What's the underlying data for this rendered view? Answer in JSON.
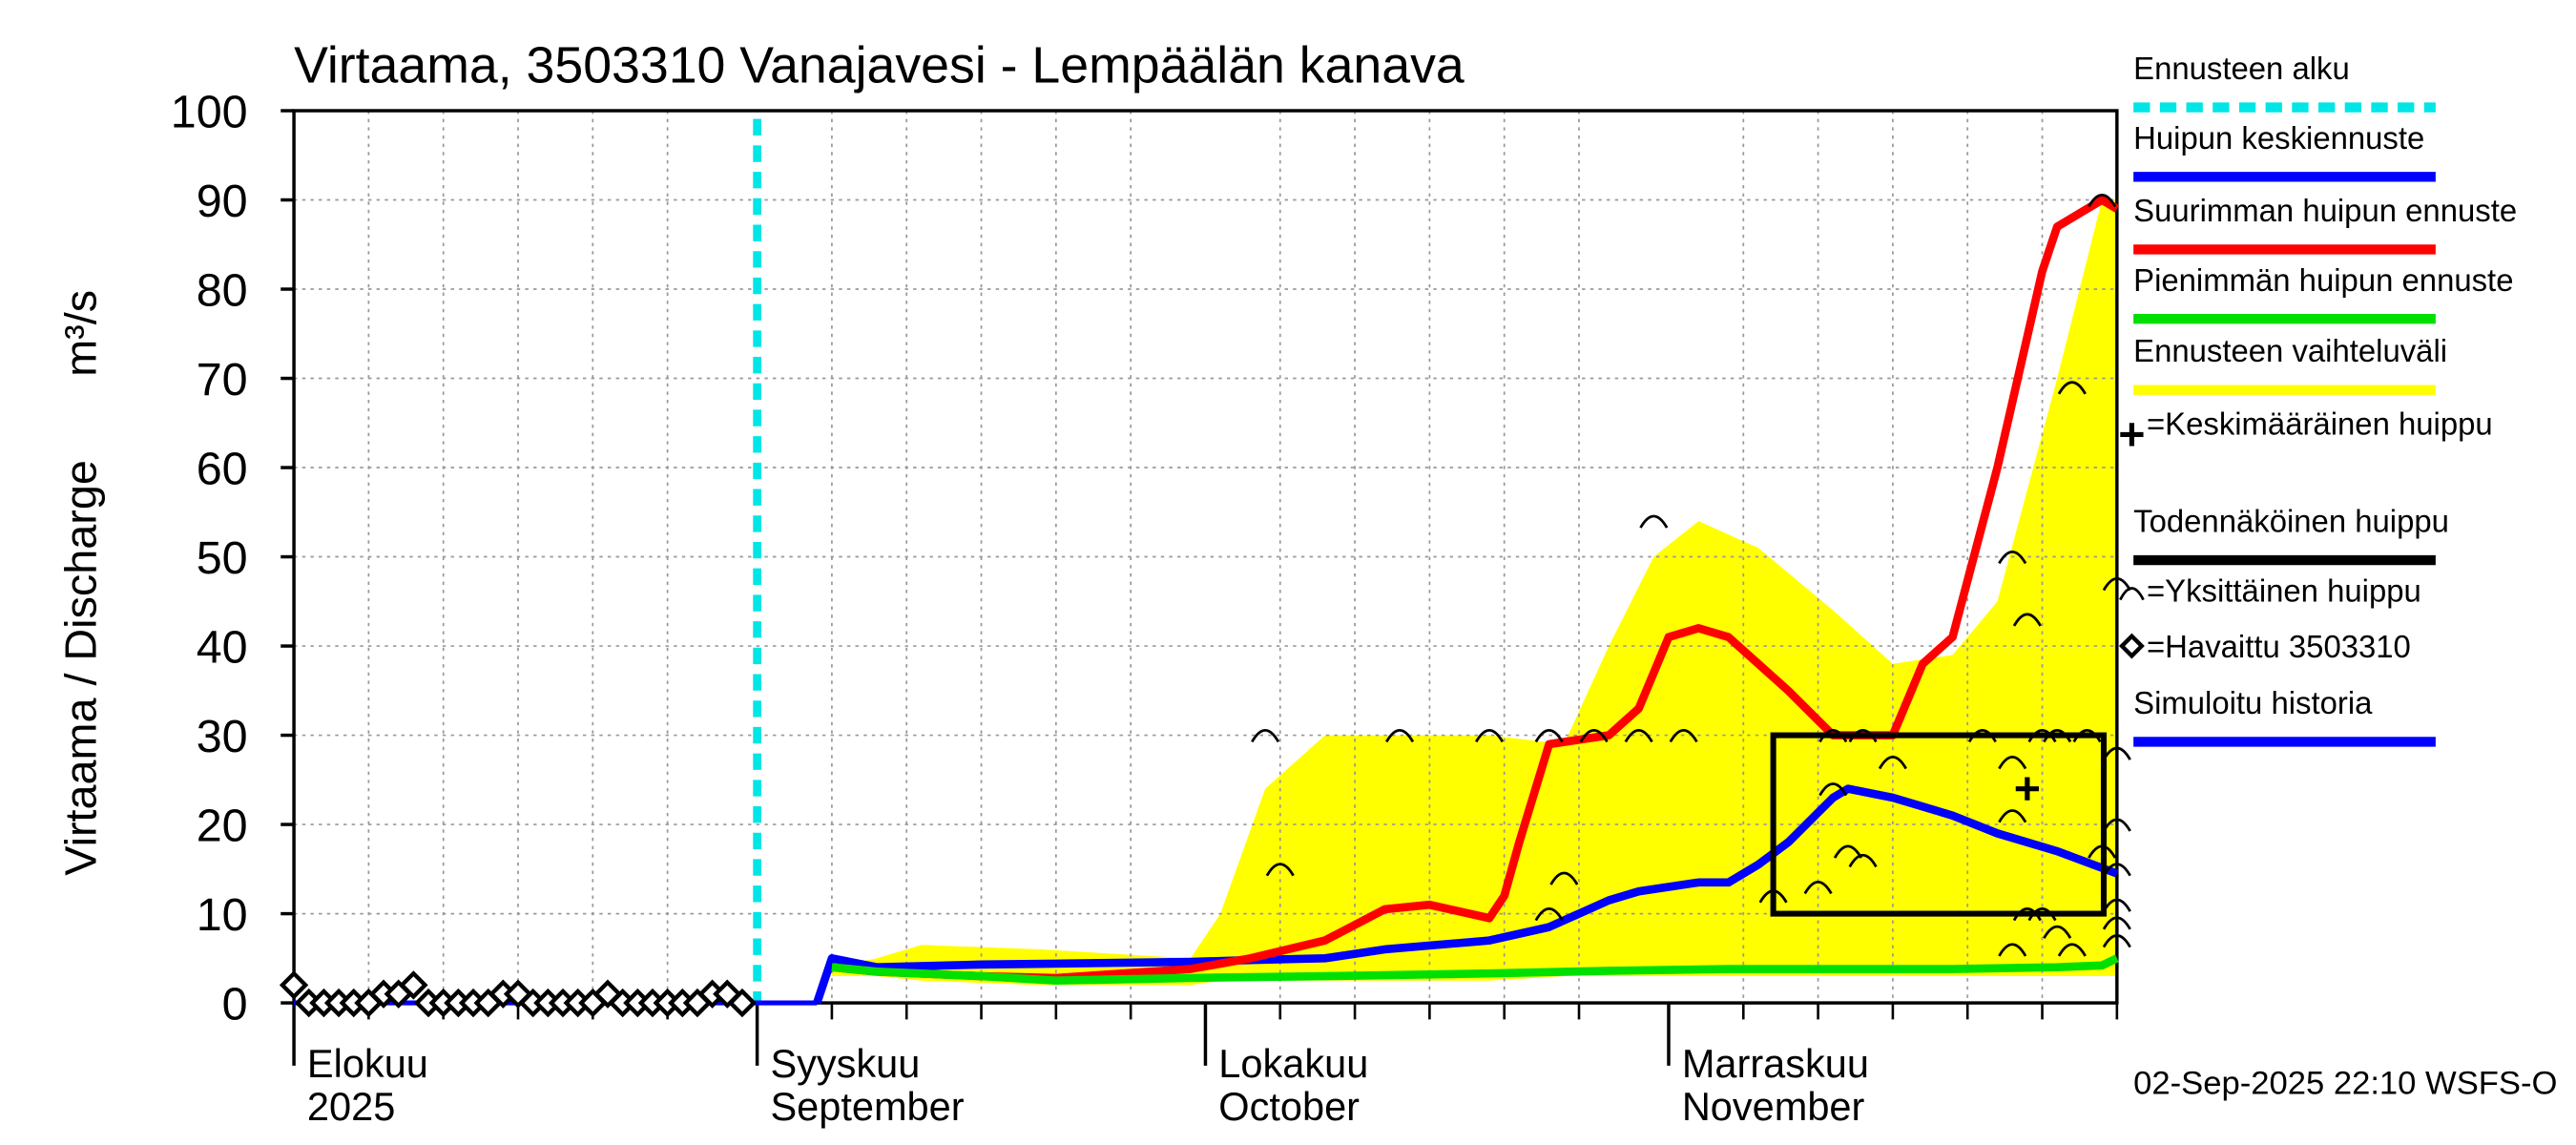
{
  "chart_data": {
    "type": "line",
    "title": "Virtaama, 3503310 Vanajavesi - Lempäälän kanava",
    "y_label": "Virtaama / Discharge",
    "y_unit": "m³/s",
    "timestamp": "02-Sep-2025 22:10 WSFS-O",
    "xlim": [
      "2025-08-01",
      "2025-12-01"
    ],
    "xticks": [
      {
        "value": "2025-08-01",
        "label": [
          "Elokuu",
          "2025"
        ]
      },
      {
        "value": "2025-09-01",
        "label": [
          "Syyskuu",
          "September"
        ]
      },
      {
        "value": "2025-10-01",
        "label": [
          "Lokakuu",
          "October"
        ]
      },
      {
        "value": "2025-11-01",
        "label": [
          "Marraskuu",
          "November"
        ]
      }
    ],
    "xminor": [
      "2025-08-06",
      "2025-08-11",
      "2025-08-16",
      "2025-08-21",
      "2025-08-26",
      "2025-09-06",
      "2025-09-11",
      "2025-09-16",
      "2025-09-21",
      "2025-09-26",
      "2025-10-06",
      "2025-10-11",
      "2025-10-16",
      "2025-10-21",
      "2025-10-26",
      "2025-11-06",
      "2025-11-11",
      "2025-11-16",
      "2025-11-21",
      "2025-11-26",
      "2025-12-01"
    ],
    "ylim": [
      0,
      100
    ],
    "yticks": [
      0,
      10,
      20,
      30,
      40,
      50,
      60,
      70,
      80,
      90,
      100
    ],
    "grid": true,
    "forecast_start": {
      "name": "Ennusteen alku",
      "x": "2025-09-01",
      "color": "#00e5e5"
    },
    "band": {
      "name": "Ennusteen vaihteluväli",
      "color": "#ffff00",
      "x": [
        "2025-09-06",
        "2025-09-09",
        "2025-09-12",
        "2025-09-20",
        "2025-09-30",
        "2025-10-02",
        "2025-10-05",
        "2025-10-09",
        "2025-10-20",
        "2025-10-25",
        "2025-10-28",
        "2025-10-31",
        "2025-11-03",
        "2025-11-07",
        "2025-11-12",
        "2025-11-16",
        "2025-11-20",
        "2025-11-23",
        "2025-11-27",
        "2025-11-30",
        "2025-12-01"
      ],
      "upper": [
        4,
        5,
        6.5,
        6,
        5,
        10,
        24,
        30,
        30,
        29,
        40,
        50,
        54,
        51,
        44,
        38,
        39,
        45,
        70,
        90,
        90
      ],
      "lower": [
        3,
        3,
        2.5,
        2,
        2,
        2.5,
        2.5,
        2.5,
        2.5,
        3,
        3,
        3,
        3,
        3,
        3,
        3,
        3,
        3,
        3,
        3,
        3
      ]
    },
    "series": [
      {
        "name": "Huipun keskiennuste",
        "color": "#0000ff",
        "x": [
          "2025-09-05",
          "2025-09-06",
          "2025-09-09",
          "2025-09-16",
          "2025-09-21",
          "2025-09-30",
          "2025-10-04",
          "2025-10-09",
          "2025-10-13",
          "2025-10-20",
          "2025-10-24",
          "2025-10-28",
          "2025-10-30",
          "2025-11-03",
          "2025-11-05",
          "2025-11-07",
          "2025-11-09",
          "2025-11-12",
          "2025-11-13",
          "2025-11-16",
          "2025-11-20",
          "2025-11-23",
          "2025-11-27",
          "2025-12-01"
        ],
        "values": [
          0,
          5,
          4,
          4.3,
          4.4,
          4.6,
          4.8,
          5,
          6,
          7,
          8.5,
          11.5,
          12.5,
          13.5,
          13.5,
          15.5,
          18,
          23,
          24,
          23,
          21,
          19,
          17,
          14.5
        ]
      },
      {
        "name": "Suurimman huipun ennuste",
        "color": "#ff0000",
        "x": [
          "2025-09-06",
          "2025-09-09",
          "2025-09-16",
          "2025-09-21",
          "2025-09-30",
          "2025-10-04",
          "2025-10-09",
          "2025-10-13",
          "2025-10-16",
          "2025-10-20",
          "2025-10-21",
          "2025-10-22",
          "2025-10-24",
          "2025-10-28",
          "2025-10-30",
          "2025-11-01",
          "2025-11-03",
          "2025-11-05",
          "2025-11-09",
          "2025-11-12",
          "2025-11-16",
          "2025-11-18",
          "2025-11-20",
          "2025-11-23",
          "2025-11-26",
          "2025-11-27",
          "2025-11-30",
          "2025-12-01"
        ],
        "values": [
          4,
          3.5,
          3,
          2.8,
          3.8,
          5,
          7,
          10.5,
          11,
          9.5,
          12,
          18,
          29,
          30,
          33,
          41,
          42,
          41,
          35,
          30,
          30,
          38,
          41,
          60,
          82,
          87,
          90,
          89
        ]
      },
      {
        "name": "Pienimmän huipun ennuste",
        "color": "#00e000",
        "x": [
          "2025-09-06",
          "2025-09-09",
          "2025-09-16",
          "2025-09-21",
          "2025-09-30",
          "2025-10-09",
          "2025-10-20",
          "2025-10-28",
          "2025-11-05",
          "2025-11-20",
          "2025-11-27",
          "2025-11-30",
          "2025-12-01"
        ],
        "values": [
          4,
          3.5,
          3,
          2.5,
          2.8,
          3,
          3.3,
          3.6,
          3.8,
          3.8,
          4,
          4.2,
          5
        ]
      },
      {
        "name": "Simuloitu historia",
        "color": "#0000ff",
        "x": [
          "2025-08-01",
          "2025-08-31",
          "2025-09-01",
          "2025-09-05"
        ],
        "values": [
          0,
          0,
          0,
          0
        ]
      }
    ],
    "mean_peak": {
      "name": "=Keskimääräinen huippu",
      "x": "2025-11-25",
      "value": 24
    },
    "probable_peak": {
      "name": "Todennäköinen huippu",
      "x": [
        "2025-11-08",
        "2025-12-01"
      ],
      "y": [
        10,
        30
      ]
    },
    "peaks": {
      "name": "=Yksittäinen huippu",
      "x": [
        "2025-10-05",
        "2025-10-06",
        "2025-10-14",
        "2025-10-20",
        "2025-10-24",
        "2025-10-24",
        "2025-10-25",
        "2025-10-27",
        "2025-10-30",
        "2025-10-31",
        "2025-11-02",
        "2025-11-08",
        "2025-11-11",
        "2025-11-12",
        "2025-11-12",
        "2025-11-13",
        "2025-11-14",
        "2025-11-14",
        "2025-11-16",
        "2025-11-22",
        "2025-11-24",
        "2025-11-24",
        "2025-11-24",
        "2025-11-24",
        "2025-11-25",
        "2025-11-25",
        "2025-11-26",
        "2025-11-26",
        "2025-11-27",
        "2025-11-27",
        "2025-11-28",
        "2025-11-28",
        "2025-11-29",
        "2025-11-30",
        "2025-11-30",
        "2025-12-01",
        "2025-12-01",
        "2025-12-01",
        "2025-12-01",
        "2025-12-01",
        "2025-12-01",
        "2025-12-01"
      ],
      "values": [
        30,
        15,
        30,
        30,
        30,
        10,
        14,
        30,
        30,
        54,
        30,
        12,
        13,
        24,
        30,
        17,
        30,
        16,
        27,
        30,
        50,
        6,
        21,
        27,
        43,
        10,
        30,
        10,
        30,
        8,
        69,
        6,
        30,
        90,
        17,
        47,
        28,
        20,
        15,
        11,
        9,
        7
      ]
    },
    "observed": {
      "name": "=Havaittu 3503310",
      "x": [
        "2025-08-01",
        "2025-08-02",
        "2025-08-03",
        "2025-08-04",
        "2025-08-05",
        "2025-08-06",
        "2025-08-07",
        "2025-08-08",
        "2025-08-09",
        "2025-08-10",
        "2025-08-11",
        "2025-08-12",
        "2025-08-13",
        "2025-08-14",
        "2025-08-15",
        "2025-08-16",
        "2025-08-17",
        "2025-08-18",
        "2025-08-19",
        "2025-08-20",
        "2025-08-21",
        "2025-08-22",
        "2025-08-23",
        "2025-08-24",
        "2025-08-25",
        "2025-08-26",
        "2025-08-27",
        "2025-08-28",
        "2025-08-29",
        "2025-08-30",
        "2025-08-31"
      ],
      "values": [
        2,
        0,
        0,
        0,
        0,
        0,
        1,
        1,
        2,
        0,
        0,
        0,
        0,
        0,
        1,
        1,
        0,
        0,
        0,
        0,
        0,
        1,
        0,
        0,
        0,
        0,
        0,
        0,
        1,
        1,
        0
      ]
    }
  }
}
